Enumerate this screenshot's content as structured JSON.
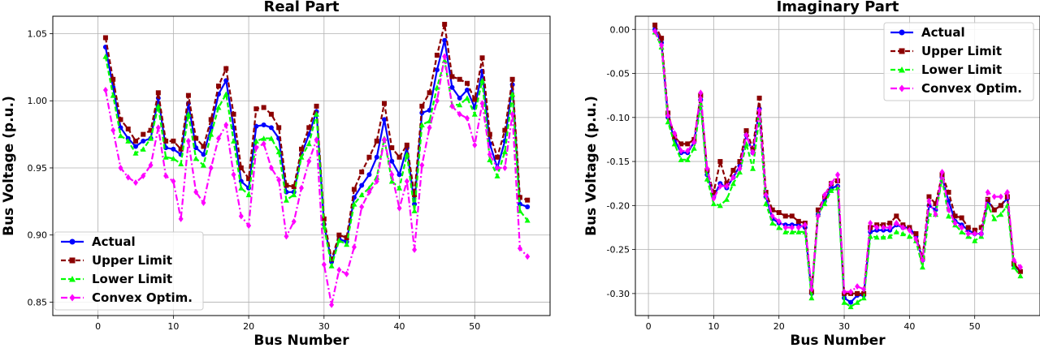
{
  "chart_data": [
    {
      "type": "line",
      "title": "Real Part",
      "xlabel": "Bus Number",
      "ylabel": "Bus Voltage (p.u.)",
      "xlim": [
        -6,
        60
      ],
      "ylim": [
        0.84,
        1.063
      ],
      "xticks": [
        "0",
        "10",
        "20",
        "30",
        "40",
        "50"
      ],
      "yticks": [
        "0.85",
        "0.90",
        "0.95",
        "1.00",
        "1.05"
      ],
      "grid": true,
      "legend_position": "bottom-left",
      "x": [
        1,
        2,
        3,
        4,
        5,
        6,
        7,
        8,
        9,
        10,
        11,
        12,
        13,
        14,
        15,
        16,
        17,
        18,
        19,
        20,
        21,
        22,
        23,
        24,
        25,
        26,
        27,
        28,
        29,
        30,
        31,
        32,
        33,
        34,
        35,
        36,
        37,
        38,
        39,
        40,
        41,
        42,
        43,
        44,
        45,
        46,
        47,
        48,
        49,
        50,
        51,
        52,
        53,
        54,
        55,
        56,
        57
      ],
      "series": [
        {
          "name": "Actual",
          "color": "#0000ff",
          "marker": "circle",
          "dash": "solid",
          "values": [
            1.04,
            1.01,
            0.98,
            0.972,
            0.966,
            0.97,
            0.972,
            1.002,
            0.965,
            0.964,
            0.96,
            0.998,
            0.965,
            0.96,
            0.98,
            1.005,
            1.015,
            0.98,
            0.94,
            0.935,
            0.981,
            0.982,
            0.98,
            0.972,
            0.932,
            0.932,
            0.96,
            0.975,
            0.992,
            0.908,
            0.88,
            0.897,
            0.895,
            0.928,
            0.937,
            0.945,
            0.958,
            0.986,
            0.955,
            0.945,
            0.965,
            0.923,
            0.991,
            0.993,
            1.023,
            1.045,
            1.01,
            1.002,
            1.008,
            0.995,
            1.022,
            0.968,
            0.95,
            0.97,
            1.012,
            0.923,
            0.921
          ]
        },
        {
          "name": "Upper Limit",
          "color": "#8b0000",
          "marker": "square",
          "dash": "dash",
          "values": [
            1.047,
            1.016,
            0.986,
            0.979,
            0.97,
            0.975,
            0.978,
            1.006,
            0.97,
            0.97,
            0.964,
            1.004,
            0.972,
            0.966,
            0.986,
            1.011,
            1.024,
            0.99,
            0.95,
            0.942,
            0.994,
            0.995,
            0.99,
            0.98,
            0.937,
            0.936,
            0.964,
            0.98,
            0.996,
            0.912,
            0.882,
            0.9,
            0.898,
            0.934,
            0.947,
            0.958,
            0.97,
            0.998,
            0.965,
            0.958,
            0.967,
            0.93,
            0.996,
            1.006,
            1.034,
            1.057,
            1.018,
            1.016,
            1.013,
            1.001,
            1.032,
            0.975,
            0.958,
            0.978,
            1.016,
            0.928,
            0.926
          ]
        },
        {
          "name": "Lower Limit",
          "color": "#00ff00",
          "marker": "triangle",
          "dash": "dash",
          "values": [
            1.033,
            1.004,
            0.974,
            0.97,
            0.961,
            0.964,
            0.972,
            0.996,
            0.958,
            0.957,
            0.953,
            0.99,
            0.957,
            0.952,
            0.975,
            0.995,
            1.005,
            0.97,
            0.935,
            0.93,
            0.97,
            0.972,
            0.972,
            0.962,
            0.926,
            0.93,
            0.958,
            0.968,
            0.99,
            0.906,
            0.877,
            0.896,
            0.893,
            0.923,
            0.93,
            0.935,
            0.943,
            0.972,
            0.94,
            0.935,
            0.96,
            0.918,
            0.982,
            0.985,
            1.01,
            1.03,
            0.997,
            0.997,
            1.002,
            0.99,
            1.015,
            0.956,
            0.944,
            0.962,
            1.005,
            0.918,
            0.911
          ]
        },
        {
          "name": "Convex Optim.",
          "color": "#ff00ff",
          "marker": "diamond",
          "dash": "dashdot",
          "values": [
            1.008,
            0.978,
            0.95,
            0.943,
            0.939,
            0.944,
            0.952,
            0.98,
            0.944,
            0.94,
            0.912,
            0.97,
            0.932,
            0.924,
            0.95,
            0.972,
            0.982,
            0.945,
            0.914,
            0.907,
            0.965,
            0.968,
            0.95,
            0.941,
            0.899,
            0.91,
            0.935,
            0.955,
            0.971,
            0.878,
            0.848,
            0.874,
            0.871,
            0.891,
            0.921,
            0.932,
            0.94,
            0.971,
            0.945,
            0.92,
            0.94,
            0.889,
            0.952,
            0.98,
            1.0,
            1.033,
            0.996,
            0.99,
            0.987,
            0.967,
            0.998,
            0.96,
            0.95,
            0.95,
            0.99,
            0.89,
            0.884
          ]
        }
      ]
    },
    {
      "type": "line",
      "title": "Imaginary Part",
      "xlabel": "Bus Number",
      "ylabel": "Bus Voltage (p.u.)",
      "xlim": [
        -2,
        60
      ],
      "ylim": [
        -0.325,
        0.015
      ],
      "xticks": [
        "0",
        "10",
        "20",
        "30",
        "40",
        "50"
      ],
      "yticks": [
        "0.00",
        "-0.05",
        "-0.10",
        "-0.15",
        "-0.20",
        "-0.25",
        "-0.30"
      ],
      "grid": true,
      "legend_position": "top-right",
      "x": [
        1,
        2,
        3,
        4,
        5,
        6,
        7,
        8,
        9,
        10,
        11,
        12,
        13,
        14,
        15,
        16,
        17,
        18,
        19,
        20,
        21,
        22,
        23,
        24,
        25,
        26,
        27,
        28,
        29,
        30,
        31,
        32,
        33,
        34,
        35,
        36,
        37,
        38,
        39,
        40,
        41,
        42,
        43,
        44,
        45,
        46,
        47,
        48,
        49,
        50,
        51,
        52,
        53,
        54,
        55,
        56,
        57
      ],
      "series": [
        {
          "name": "Actual",
          "color": "#0000ff",
          "marker": "circle",
          "dash": "solid",
          "values": [
            0.0,
            -0.015,
            -0.1,
            -0.125,
            -0.14,
            -0.14,
            -0.128,
            -0.08,
            -0.165,
            -0.19,
            -0.175,
            -0.18,
            -0.168,
            -0.155,
            -0.12,
            -0.14,
            -0.09,
            -0.19,
            -0.215,
            -0.22,
            -0.222,
            -0.222,
            -0.222,
            -0.225,
            -0.3,
            -0.21,
            -0.195,
            -0.18,
            -0.178,
            -0.305,
            -0.31,
            -0.302,
            -0.302,
            -0.23,
            -0.228,
            -0.228,
            -0.228,
            -0.222,
            -0.225,
            -0.225,
            -0.235,
            -0.262,
            -0.2,
            -0.205,
            -0.168,
            -0.195,
            -0.218,
            -0.222,
            -0.228,
            -0.232,
            -0.232,
            -0.195,
            -0.205,
            -0.2,
            -0.192,
            -0.268,
            -0.275
          ]
        },
        {
          "name": "Upper Limit",
          "color": "#8b0000",
          "marker": "square",
          "dash": "dash",
          "values": [
            0.005,
            -0.01,
            -0.095,
            -0.122,
            -0.13,
            -0.13,
            -0.125,
            -0.075,
            -0.16,
            -0.185,
            -0.15,
            -0.175,
            -0.16,
            -0.15,
            -0.115,
            -0.135,
            -0.078,
            -0.185,
            -0.205,
            -0.208,
            -0.212,
            -0.212,
            -0.218,
            -0.22,
            -0.298,
            -0.205,
            -0.19,
            -0.175,
            -0.172,
            -0.3,
            -0.3,
            -0.3,
            -0.3,
            -0.225,
            -0.222,
            -0.222,
            -0.22,
            -0.212,
            -0.222,
            -0.225,
            -0.232,
            -0.26,
            -0.19,
            -0.198,
            -0.165,
            -0.185,
            -0.212,
            -0.214,
            -0.225,
            -0.228,
            -0.225,
            -0.193,
            -0.205,
            -0.2,
            -0.19,
            -0.266,
            -0.275
          ]
        },
        {
          "name": "Lower Limit",
          "color": "#00ff00",
          "marker": "triangle",
          "dash": "dash",
          "values": [
            -0.003,
            -0.02,
            -0.105,
            -0.13,
            -0.148,
            -0.148,
            -0.135,
            -0.085,
            -0.17,
            -0.198,
            -0.2,
            -0.193,
            -0.175,
            -0.162,
            -0.13,
            -0.158,
            -0.1,
            -0.198,
            -0.22,
            -0.225,
            -0.23,
            -0.23,
            -0.23,
            -0.23,
            -0.305,
            -0.21,
            -0.198,
            -0.183,
            -0.18,
            -0.31,
            -0.315,
            -0.31,
            -0.305,
            -0.235,
            -0.236,
            -0.236,
            -0.235,
            -0.23,
            -0.232,
            -0.235,
            -0.24,
            -0.27,
            -0.21,
            -0.21,
            -0.17,
            -0.212,
            -0.222,
            -0.23,
            -0.235,
            -0.24,
            -0.235,
            -0.2,
            -0.215,
            -0.21,
            -0.2,
            -0.27,
            -0.28
          ]
        },
        {
          "name": "Convex Optim.",
          "color": "#ff00ff",
          "marker": "diamond",
          "dash": "dashdot",
          "values": [
            -0.002,
            -0.018,
            -0.098,
            -0.118,
            -0.138,
            -0.138,
            -0.128,
            -0.072,
            -0.158,
            -0.192,
            -0.178,
            -0.178,
            -0.168,
            -0.158,
            -0.12,
            -0.14,
            -0.092,
            -0.188,
            -0.212,
            -0.218,
            -0.225,
            -0.225,
            -0.225,
            -0.222,
            -0.295,
            -0.212,
            -0.188,
            -0.175,
            -0.165,
            -0.298,
            -0.298,
            -0.292,
            -0.295,
            -0.22,
            -0.225,
            -0.225,
            -0.225,
            -0.22,
            -0.225,
            -0.228,
            -0.238,
            -0.262,
            -0.195,
            -0.21,
            -0.162,
            -0.205,
            -0.22,
            -0.225,
            -0.232,
            -0.232,
            -0.232,
            -0.185,
            -0.19,
            -0.19,
            -0.185,
            -0.262,
            -0.27
          ]
        }
      ]
    }
  ]
}
